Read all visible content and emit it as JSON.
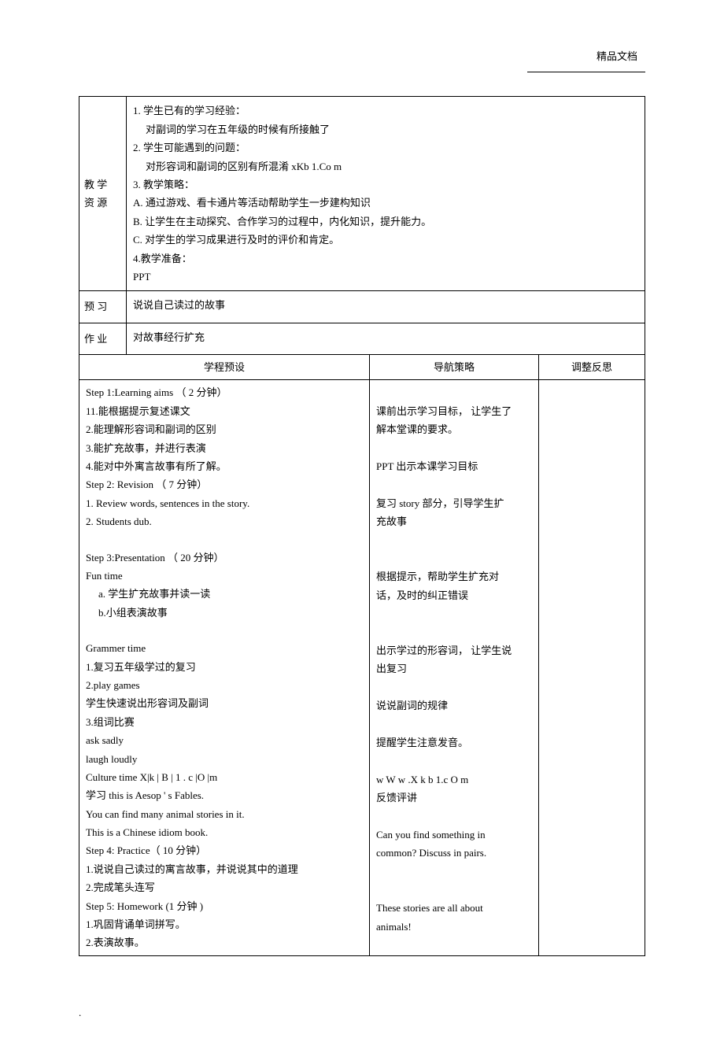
{
  "header": {
    "label": "精品文档"
  },
  "rows": {
    "resources": {
      "label1": "教 学",
      "label2": "资 源",
      "lines": [
        "1. 学生已有的学习经验：",
        "对副词的学习在五年级的时候有所接触了",
        "2. 学生可能遇到的问题：",
        "对形容词和副词的区别有所混淆 xKb          1.Co m",
        "3. 教学策略：",
        "A. 通过游戏、看卡通片等活动帮助学生一步建构知识",
        "B. 让学生在主动探究、合作学习的过程中，内化知识，提升能力。",
        "C. 对学生的学习成果进行及时的评价和肯定。",
        "4.教学准备：",
        "PPT"
      ]
    },
    "preview": {
      "label": "预 习",
      "content": "说说自己读过的故事"
    },
    "homework": {
      "label": "作 业",
      "content": "对故事经行扩充"
    },
    "threeHeader": {
      "col1": "学程预设",
      "col2": "导航策略",
      "col3": "调整反思"
    },
    "main": {
      "left": {
        "s1_title": "Step 1:Learning aims （ 2 分钟）",
        "s1_1": "11.能根据提示复述课文",
        "s1_2": "2.能理解形容词和副词的区别",
        "s1_3": "3.能扩充故事，并进行表演",
        "s1_4": "4.能对中外寓言故事有所了解。",
        "s2_title": "Step 2: Revision （ 7 分钟）",
        "s2_1": "1. Review words, sentences in the story.",
        "s2_2": "2. Students dub.",
        "blank1": "",
        "s3_title": "Step 3:Presentation （ 20 分钟）",
        "s3_fun": "Fun time",
        "s3_a": "a. 学生扩充故事并读一读",
        "s3_b": "b.小组表演故事",
        "blank2": "",
        "s3_gram": "Grammer time",
        "s3_g1": "1.复习五年级学过的复习",
        "s3_g2": "2.play games",
        "s3_g3": "学生快速说出形容词及副词",
        "s3_g4": "3.组词比赛",
        "s3_g5": "ask sadly",
        "s3_g6": "laugh loudly",
        "s3_ct": "Culture time X|k    | B | 1 . c    |O |m",
        "s3_ct1": "学习  this is Aesop    ' s Fables.",
        "s3_ct2": "You can find many animal stories in it.",
        "s3_ct3": "This is a Chinese idiom book.",
        "s4_title": "Step 4:   Practice（ 10 分钟）",
        "s4_1": "1.说说自己读过的寓言故事，并说说其中的道理",
        "s4_2": "2.完成笔头连写",
        "s5_title": "Step 5: Homework (1  分钟 )",
        "s5_1": "1.巩固背诵单词拼写。",
        "s5_2": "2.表演故事。"
      },
      "right": {
        "r1": "课前出示学习目标，  让学生了",
        "r2": "解本堂课的要求。",
        "r3": "PPT 出示本课学习目标",
        "r4": "复习 story 部分，引导学生扩",
        "r5": "充故事",
        "r6": "根据提示，帮助学生扩充对",
        "r7": "话，及时的纠正错误",
        "r8": "出示学过的形容词，  让学生说",
        "r9": "出复习",
        "r10": "说说副词的规律",
        "r11": "提醒学生注意发音。",
        "r12": "w      W    w .X k b 1.c O m",
        "r13": "反馈评讲",
        "r14": "Can  you  find  something  in",
        "r15": "common? Discuss in pairs.",
        "r16": "These  stories  are  all  about",
        "r17": "animals!"
      }
    }
  },
  "footer": "."
}
